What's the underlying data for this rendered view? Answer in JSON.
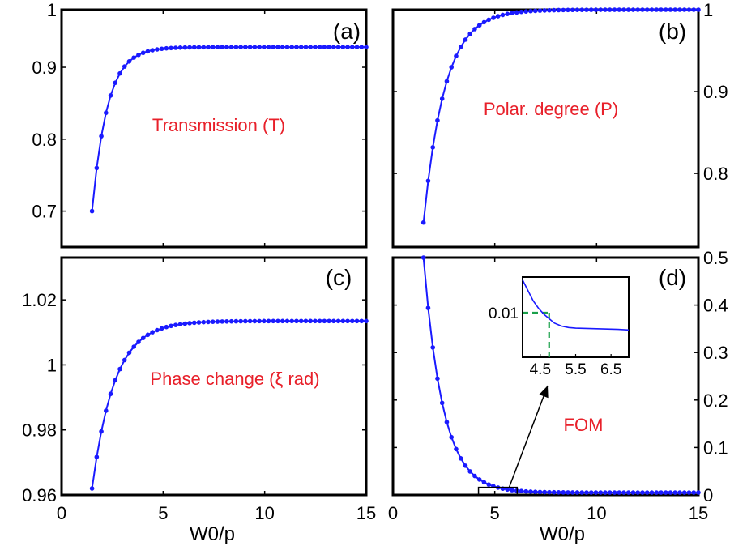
{
  "chart_data": [
    {
      "type": "line",
      "panel_label": "(a)",
      "annotation": "Transmission (T)",
      "xlabel": "",
      "ylabel": "",
      "xlim": [
        0,
        15
      ],
      "ylim": [
        0.65,
        0.98
      ],
      "x_ticks": [
        "0",
        "5",
        "10",
        "15"
      ],
      "x_ticks_shown": false,
      "y_ticks": [
        {
          "v": 0.7,
          "label": "0.7"
        },
        {
          "v": 0.8,
          "label": "0.8"
        },
        {
          "v": 0.9,
          "label": "0.9"
        },
        {
          "v": 0.98,
          "label": "1"
        }
      ],
      "y_axis": "left",
      "model": {
        "base": 0.928,
        "amp": -0.228,
        "x0": 1.5,
        "tau": 0.75
      },
      "x_range": [
        1.5,
        15
      ],
      "points": 60,
      "series_color": "#1a1aff"
    },
    {
      "type": "line",
      "panel_label": "(b)",
      "annotation": "Polar. degree (P)",
      "xlabel": "",
      "ylabel": "",
      "xlim": [
        0,
        15
      ],
      "ylim": [
        0.71,
        1.0
      ],
      "x_ticks": [
        "0",
        "5",
        "10",
        "15"
      ],
      "x_ticks_shown": false,
      "y_ticks": [
        {
          "v": 0.8,
          "label": "0.8"
        },
        {
          "v": 0.9,
          "label": "0.9"
        },
        {
          "v": 1.0,
          "label": "1"
        }
      ],
      "y_axis": "right",
      "model": {
        "base": 1.0,
        "amp": -0.26,
        "x0": 1.5,
        "tau": 1.05
      },
      "x_range": [
        1.5,
        15
      ],
      "points": 60,
      "series_color": "#1a1aff"
    },
    {
      "type": "line",
      "panel_label": "(c)",
      "annotation": "Phase change (ξ rad)",
      "xlabel": "W0/p",
      "ylabel": "",
      "xlim": [
        0,
        15
      ],
      "ylim": [
        0.96,
        1.033
      ],
      "x_ticks": [
        "0",
        "5",
        "10",
        "15"
      ],
      "x_ticks_shown": true,
      "y_ticks": [
        {
          "v": 0.96,
          "label": "0.96"
        },
        {
          "v": 0.98,
          "label": "0.98"
        },
        {
          "v": 1.0,
          "label": "1"
        },
        {
          "v": 1.02,
          "label": "1.02"
        }
      ],
      "y_axis": "left",
      "model": {
        "base": 1.0135,
        "amp": -0.0515,
        "x0": 1.5,
        "tau": 1.1
      },
      "x_range": [
        1.5,
        15
      ],
      "points": 60,
      "series_color": "#1a1aff"
    },
    {
      "type": "line",
      "panel_label": "(d)",
      "annotation": "FOM",
      "xlabel": "W0/p",
      "ylabel": "",
      "xlim": [
        0,
        15
      ],
      "ylim": [
        0,
        0.5
      ],
      "x_ticks": [
        "0",
        "5",
        "10",
        "15"
      ],
      "x_ticks_shown": true,
      "y_ticks": [
        {
          "v": 0,
          "label": "0"
        },
        {
          "v": 0.1,
          "label": "0.1"
        },
        {
          "v": 0.2,
          "label": "0.2"
        },
        {
          "v": 0.3,
          "label": "0.3"
        },
        {
          "v": 0.4,
          "label": "0.4"
        },
        {
          "v": 0.5,
          "label": "0.5"
        }
      ],
      "y_axis": "right",
      "model": {
        "base": 0.005,
        "amp": 0.495,
        "x0": 1.5,
        "tau": 0.95
      },
      "x_range": [
        1.5,
        15
      ],
      "points": 60,
      "series_color": "#1a1aff",
      "zoom_box": {
        "x": [
          4.2,
          6.1
        ],
        "y": [
          0,
          0.016
        ]
      },
      "inset": {
        "type": "line",
        "xlim": [
          4.0,
          7.0
        ],
        "ylim": [
          0.0085,
          0.0112
        ],
        "x_ticks": [
          {
            "v": 4.5,
            "label": "4.5"
          },
          {
            "v": 5.5,
            "label": "5.5"
          },
          {
            "v": 6.5,
            "label": "6.5"
          }
        ],
        "y_ticks": [
          {
            "v": 0.01,
            "label": "0.01"
          }
        ],
        "x": [
          4.0,
          4.15,
          4.3,
          4.45,
          4.6,
          4.75,
          4.9,
          5.1,
          5.3,
          5.5,
          5.8,
          6.1,
          6.4,
          6.7,
          7.0
        ],
        "y": [
          0.0111,
          0.01075,
          0.0104,
          0.01015,
          0.00995,
          0.0098,
          0.00965,
          0.00955,
          0.0095,
          0.00948,
          0.00947,
          0.00946,
          0.00945,
          0.00944,
          0.00942
        ],
        "guide": {
          "x": 4.75,
          "y": 0.01
        }
      }
    }
  ]
}
